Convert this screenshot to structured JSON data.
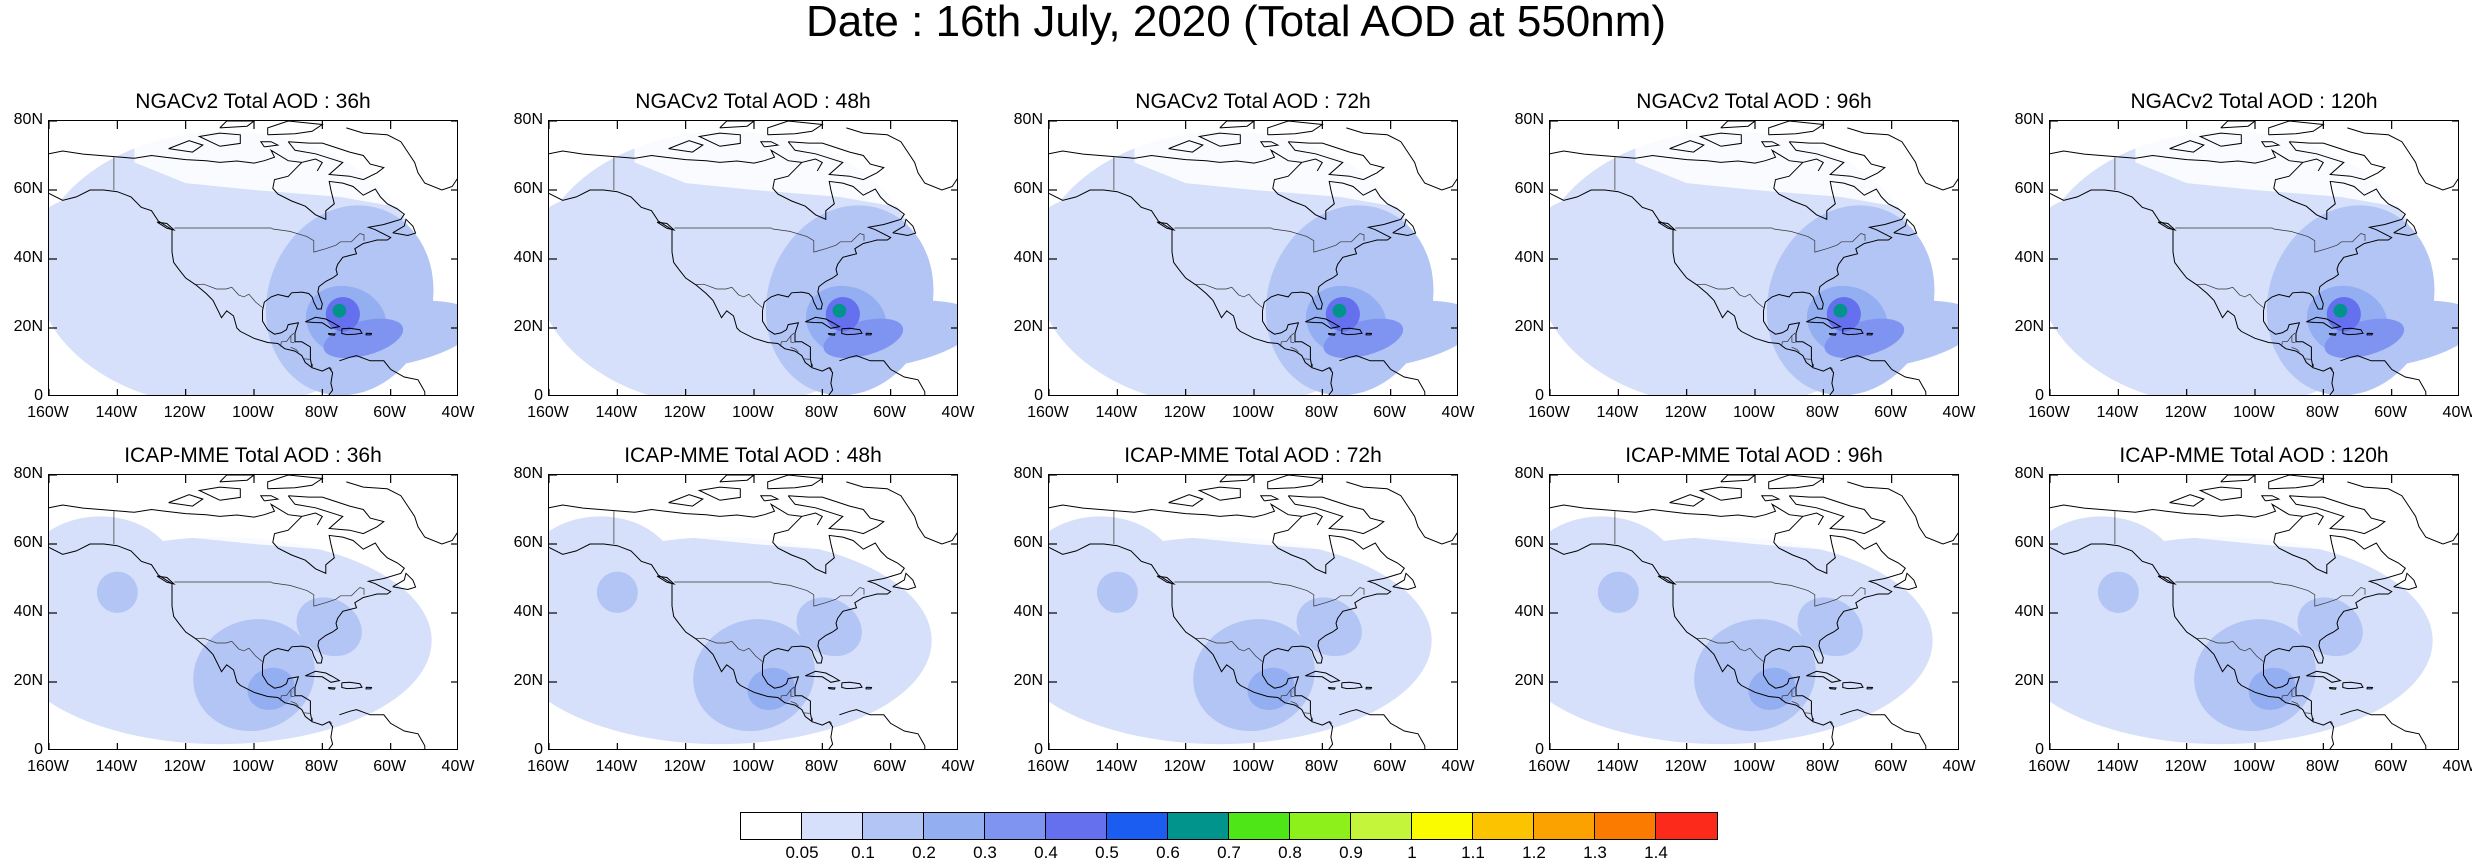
{
  "title": "Date : 16th July, 2020 (Total AOD at 550nm)",
  "panels": [
    {
      "title": "NGACv2 Total AOD : 36h",
      "model": "NGAC"
    },
    {
      "title": "NGACv2 Total AOD : 48h",
      "model": "NGAC"
    },
    {
      "title": "NGACv2 Total AOD : 72h",
      "model": "NGAC"
    },
    {
      "title": "NGACv2 Total AOD : 96h",
      "model": "NGAC"
    },
    {
      "title": "NGACv2 Total AOD : 120h",
      "model": "NGAC"
    },
    {
      "title": "ICAP-MME Total AOD : 36h",
      "model": "ICAP"
    },
    {
      "title": "ICAP-MME Total AOD : 48h",
      "model": "ICAP"
    },
    {
      "title": "ICAP-MME Total AOD : 72h",
      "model": "ICAP"
    },
    {
      "title": "ICAP-MME Total AOD : 96h",
      "model": "ICAP"
    },
    {
      "title": "ICAP-MME Total AOD : 120h",
      "model": "ICAP"
    }
  ],
  "lat_ticks": [
    "80N",
    "60N",
    "40N",
    "20N",
    "0"
  ],
  "lon_ticks": [
    "160W",
    "140W",
    "120W",
    "100W",
    "80W",
    "60W",
    "40W"
  ],
  "colorbar": {
    "labels": [
      "0.05",
      "0.1",
      "0.2",
      "0.3",
      "0.4",
      "0.5",
      "0.6",
      "0.7",
      "0.8",
      "0.9",
      "1",
      "1.1",
      "1.2",
      "1.3",
      "1.4"
    ],
    "colors": [
      "#ffffff",
      "#d6e0fa",
      "#b3c5f5",
      "#94aef2",
      "#7f94f0",
      "#6470ee",
      "#1a5df0",
      "#00948c",
      "#4ee617",
      "#8ef01a",
      "#c4f53a",
      "#fbfb00",
      "#fbc300",
      "#fba200",
      "#fb7b00",
      "#fb2a1a"
    ]
  }
}
